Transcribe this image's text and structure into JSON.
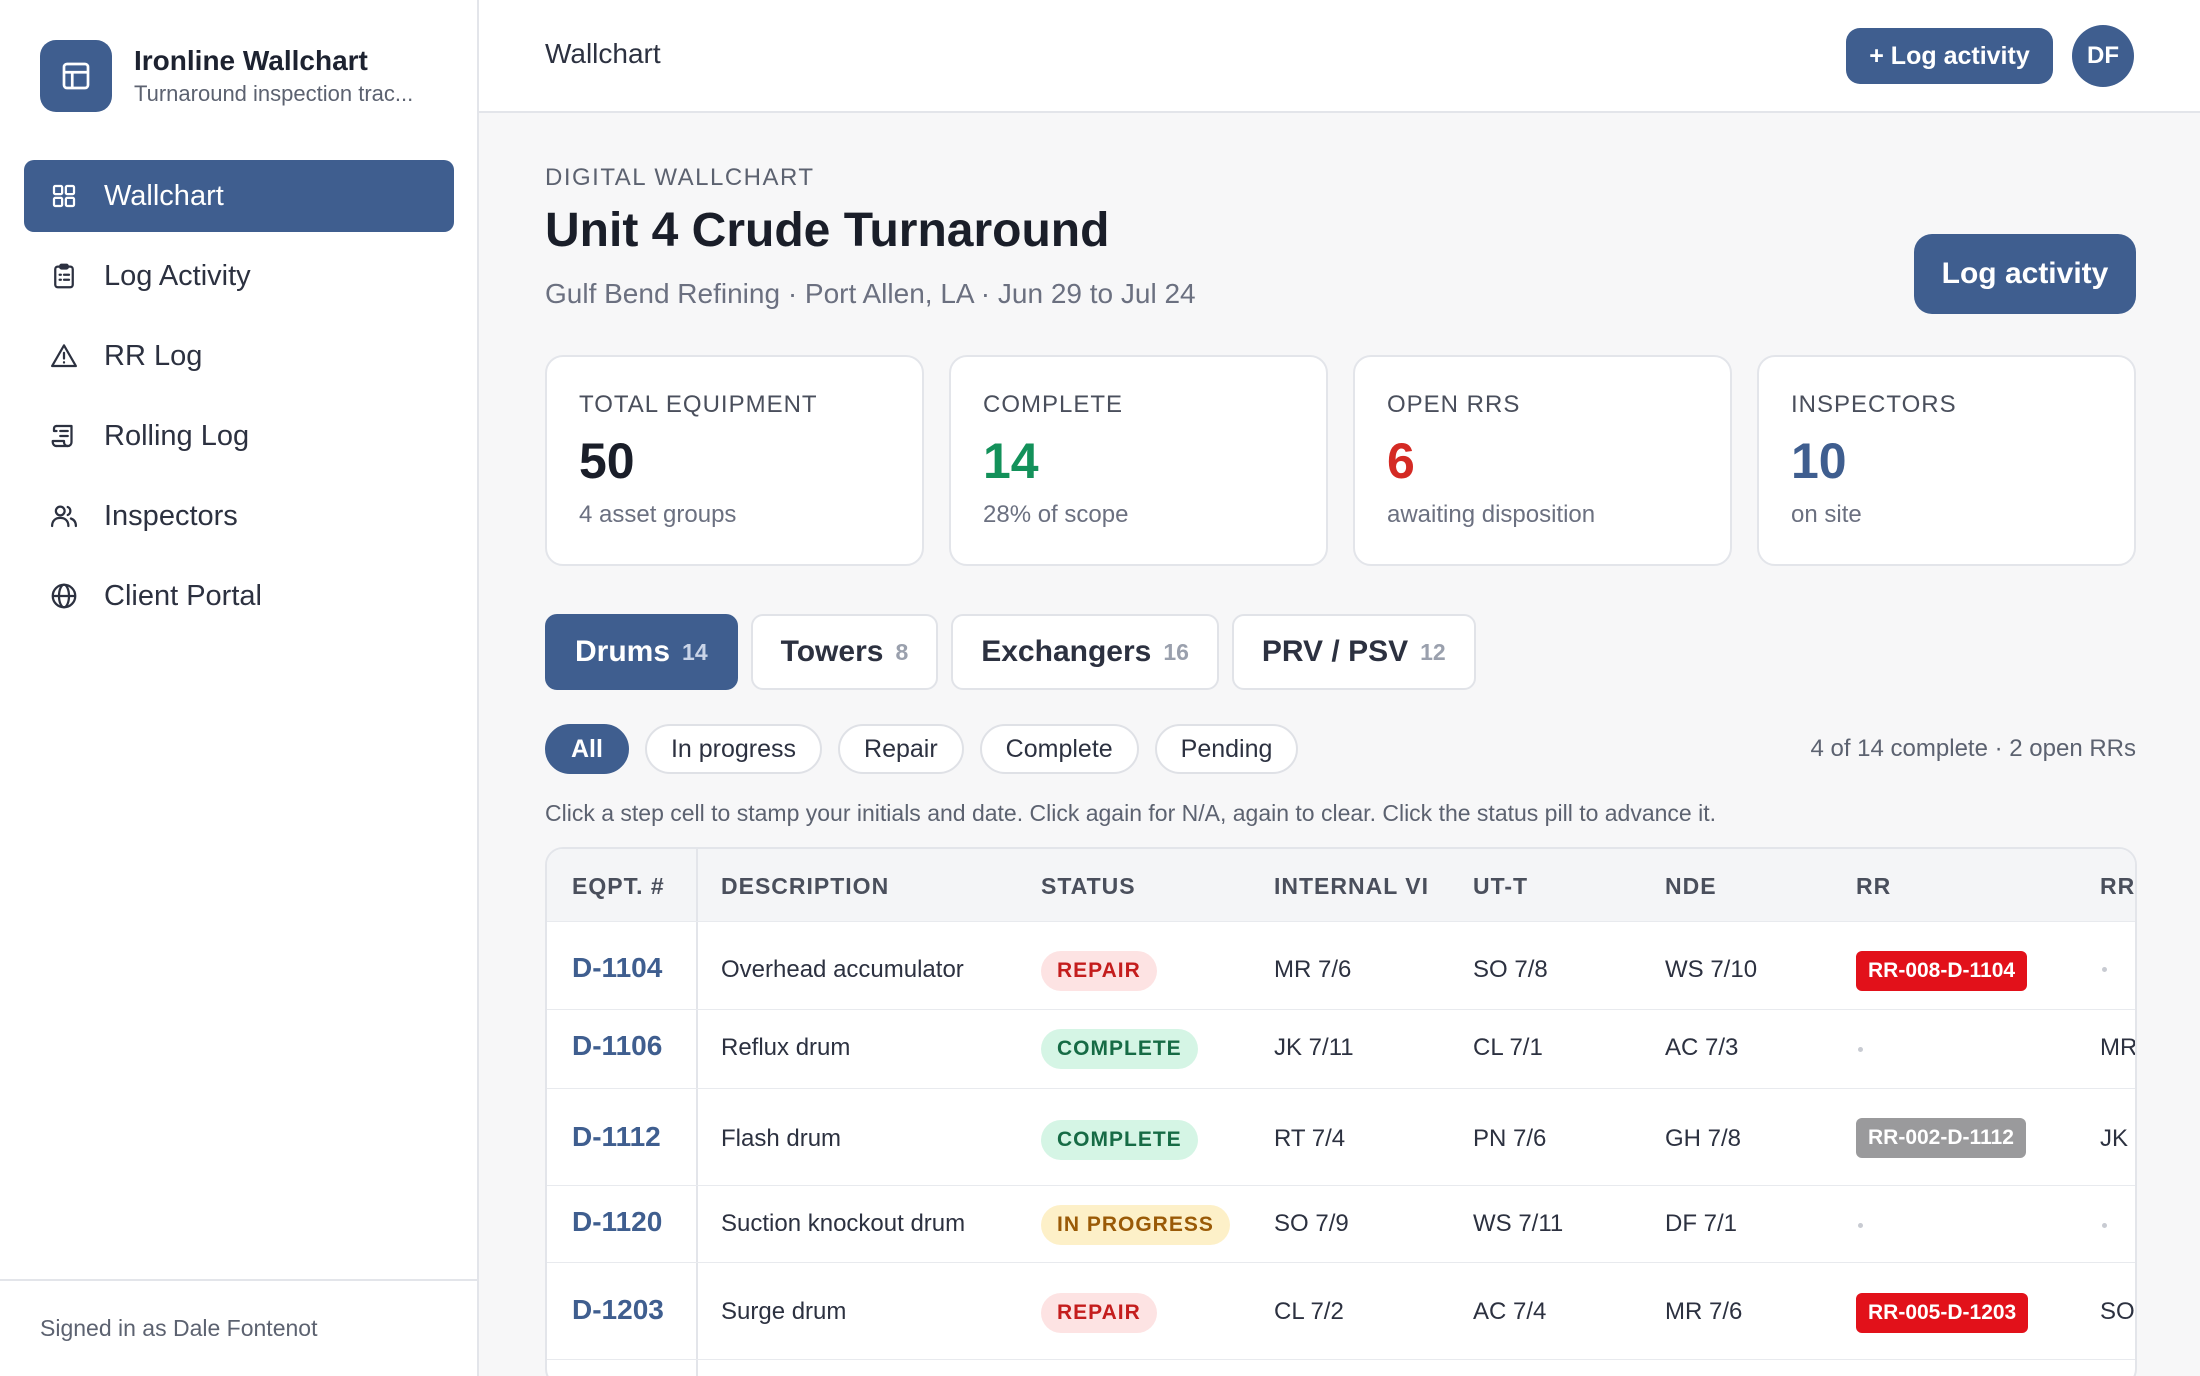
{
  "app": {
    "title": "Ironline Wallchart",
    "subtitle": "Turnaround inspection trac..."
  },
  "nav": [
    {
      "label": "Wallchart",
      "icon": "grid-icon",
      "active": true
    },
    {
      "label": "Log Activity",
      "icon": "clipboard-icon",
      "active": false
    },
    {
      "label": "RR Log",
      "icon": "warning-icon",
      "active": false
    },
    {
      "label": "Rolling Log",
      "icon": "scroll-icon",
      "active": false
    },
    {
      "label": "Inspectors",
      "icon": "users-icon",
      "active": false
    },
    {
      "label": "Client Portal",
      "icon": "globe-icon",
      "active": false
    }
  ],
  "signed_in": "Signed in as Dale Fontenot",
  "topbar": {
    "title": "Wallchart",
    "log_button": "+ Log activity",
    "avatar": "DF"
  },
  "header": {
    "eyebrow": "DIGITAL WALLCHART",
    "title": "Unit 4 Crude Turnaround",
    "subtitle": "Gulf Bend Refining · Port Allen, LA · Jun 29 to Jul 24",
    "log_button": "Log activity"
  },
  "stats": [
    {
      "label": "TOTAL EQUIPMENT",
      "value": "50",
      "note": "4 asset groups",
      "color": "#1a1e29"
    },
    {
      "label": "COMPLETE",
      "value": "14",
      "note": "28% of scope",
      "color": "#13915a"
    },
    {
      "label": "OPEN RRS",
      "value": "6",
      "note": "awaiting disposition",
      "color": "#d42a24"
    },
    {
      "label": "INSPECTORS",
      "value": "10",
      "note": "on site",
      "color": "#3f5e8f"
    }
  ],
  "tabs": [
    {
      "label": "Drums",
      "count": "14",
      "active": true
    },
    {
      "label": "Towers",
      "count": "8",
      "active": false
    },
    {
      "label": "Exchangers",
      "count": "16",
      "active": false
    },
    {
      "label": "PRV / PSV",
      "count": "12",
      "active": false
    }
  ],
  "filters": [
    {
      "label": "All",
      "active": true
    },
    {
      "label": "In progress",
      "active": false
    },
    {
      "label": "Repair",
      "active": false
    },
    {
      "label": "Complete",
      "active": false
    },
    {
      "label": "Pending",
      "active": false
    }
  ],
  "summary": "4 of 14 complete · 2 open RRs",
  "hint": "Click a step cell to stamp your initials and date. Click again for N/A, again to clear. Click the status pill to advance it.",
  "table": {
    "columns": [
      "EQPT. #",
      "DESCRIPTION",
      "STATUS",
      "INTERNAL VI",
      "UT-T",
      "NDE",
      "RR",
      "RR"
    ],
    "rows": [
      {
        "eqpt": "D-1104",
        "description": "Overhead accumulator",
        "status": "REPAIR",
        "status_kind": "repair",
        "internal_vi": "MR 7/6",
        "utt": "SO 7/8",
        "nde": "WS 7/10",
        "rr": "RR-008-D-1104",
        "rr_kind": "open",
        "rr2": ""
      },
      {
        "eqpt": "D-1106",
        "description": "Reflux drum",
        "status": "COMPLETE",
        "status_kind": "complete",
        "internal_vi": "JK 7/11",
        "utt": "CL 7/1",
        "nde": "AC 7/3",
        "rr": "",
        "rr_kind": "",
        "rr2": "MR"
      },
      {
        "eqpt": "D-1112",
        "description": "Flash drum",
        "status": "COMPLETE",
        "status_kind": "complete",
        "internal_vi": "RT 7/4",
        "utt": "PN 7/6",
        "nde": "GH 7/8",
        "rr": "RR-002-D-1112",
        "rr_kind": "closed",
        "rr2": "JK"
      },
      {
        "eqpt": "D-1120",
        "description": "Suction knockout drum",
        "status": "IN PROGRESS",
        "status_kind": "progress",
        "internal_vi": "SO 7/9",
        "utt": "WS 7/11",
        "nde": "DF 7/1",
        "rr": "",
        "rr_kind": "",
        "rr2": ""
      },
      {
        "eqpt": "D-1203",
        "description": "Surge drum",
        "status": "REPAIR",
        "status_kind": "repair",
        "internal_vi": "CL 7/2",
        "utt": "AC 7/4",
        "nde": "MR 7/6",
        "rr": "RR-005-D-1203",
        "rr_kind": "open",
        "rr2": "SO"
      }
    ]
  }
}
